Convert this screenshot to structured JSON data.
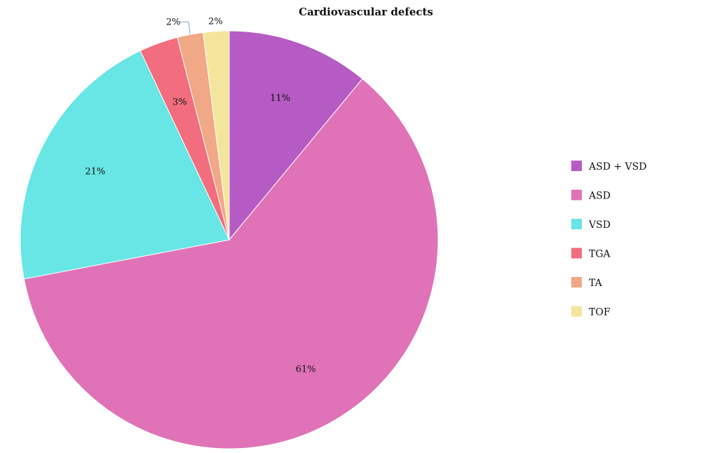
{
  "chart_data": {
    "type": "pie",
    "title": "Cardiovascular defects",
    "categories": [
      "ASD + VSD",
      "ASD",
      "VSD",
      "TGA",
      "TA",
      "TOF"
    ],
    "values": [
      11,
      61,
      21,
      3,
      2,
      2
    ],
    "labels": [
      "11%",
      "61%",
      "21%",
      "3%",
      "2%",
      "2%"
    ],
    "colors": [
      "#b65bc3",
      "#e073b7",
      "#68e5e5",
      "#f26d7d",
      "#f0a886",
      "#f3e59b"
    ],
    "start_angle_deg": 0,
    "direction": "clockwise",
    "legend_position": "right"
  }
}
